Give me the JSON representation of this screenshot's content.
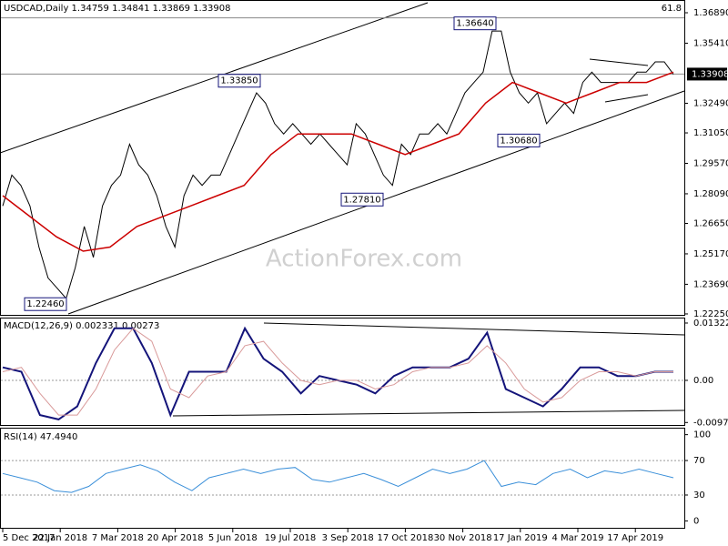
{
  "chart_data": [
    {
      "type": "line",
      "title": "USDCAD,Daily  1.34759 1.34841 1.33869 1.33908",
      "series": [
        {
          "name": "USDCAD",
          "color": "#000000",
          "values": [
            1.275,
            1.29,
            1.285,
            1.275,
            1.255,
            1.24,
            1.235,
            1.23,
            1.245,
            1.265,
            1.25,
            1.275,
            1.285,
            1.29,
            1.305,
            1.295,
            1.29,
            1.28,
            1.265,
            1.255,
            1.28,
            1.29,
            1.285,
            1.29,
            1.29,
            1.3,
            1.31,
            1.32,
            1.33,
            1.325,
            1.315,
            1.31,
            1.315,
            1.31,
            1.305,
            1.31,
            1.305,
            1.3,
            1.295,
            1.315,
            1.31,
            1.3,
            1.29,
            1.285,
            1.305,
            1.3,
            1.31,
            1.31,
            1.315,
            1.31,
            1.32,
            1.33,
            1.335,
            1.34,
            1.36,
            1.36,
            1.34,
            1.33,
            1.325,
            1.33,
            1.315,
            1.32,
            1.325,
            1.32,
            1.335,
            1.34,
            1.335,
            1.335,
            1.335,
            1.335,
            1.34,
            1.34,
            1.345,
            1.345,
            1.339
          ]
        },
        {
          "name": "MA",
          "color": "#cc0000",
          "values": [
            1.28,
            1.27,
            1.26,
            1.253,
            1.255,
            1.265,
            1.27,
            1.275,
            1.28,
            1.285,
            1.3,
            1.31,
            1.31,
            1.31,
            1.305,
            1.3,
            1.305,
            1.31,
            1.325,
            1.335,
            1.33,
            1.325,
            1.33,
            1.335,
            1.335,
            1.34
          ]
        }
      ],
      "ylim": [
        1.2216,
        1.3751
      ],
      "yticks": [
        {
          "value": 1.3689,
          "label": "1.36890"
        },
        {
          "value": 1.3541,
          "label": "1.35410"
        },
        {
          "value": 1.3249,
          "label": "1.32490"
        },
        {
          "value": 1.3105,
          "label": "1.31050"
        },
        {
          "value": 1.2957,
          "label": "1.29570"
        },
        {
          "value": 1.2809,
          "label": "1.28090"
        },
        {
          "value": 1.2665,
          "label": "1.26650"
        },
        {
          "value": 1.2517,
          "label": "1.25170"
        },
        {
          "value": 1.2369,
          "label": "1.23690"
        },
        {
          "value": 1.2225,
          "label": "1.22250"
        }
      ],
      "last": {
        "value": 1.33908,
        "label": "1.33908"
      },
      "annotations": [
        {
          "value": 1.3664,
          "label": "1.36640"
        },
        {
          "value": 1.3385,
          "label": "1.33850"
        },
        {
          "value": 1.3068,
          "label": "1.30680"
        },
        {
          "value": 1.2781,
          "label": "1.27810"
        },
        {
          "value": 1.2246,
          "label": "1.22460"
        }
      ],
      "fib_label": "61.8",
      "watermark": "ActionForex.com"
    },
    {
      "type": "line",
      "title": "MACD(12,26,9) 0.002331 0.00273",
      "series": [
        {
          "name": "MACD",
          "color": "#14147a",
          "values": [
            0.003,
            0.002,
            -0.008,
            -0.009,
            -0.006,
            0.004,
            0.012,
            0.012,
            0.004,
            -0.008,
            0.002,
            0.002,
            0.002,
            0.012,
            0.005,
            0.002,
            -0.003,
            0.001,
            0.0,
            -0.001,
            -0.003,
            0.001,
            0.003,
            0.003,
            0.003,
            0.005,
            0.011,
            -0.002,
            -0.004,
            -0.006,
            -0.002,
            0.003,
            0.003,
            0.001,
            0.001,
            0.002,
            0.002
          ]
        },
        {
          "name": "Signal",
          "color": "#d99a9a",
          "values": [
            0.002,
            0.003,
            -0.003,
            -0.008,
            -0.008,
            -0.002,
            0.007,
            0.012,
            0.009,
            -0.002,
            -0.004,
            0.001,
            0.002,
            0.008,
            0.009,
            0.004,
            0.0,
            -0.001,
            0.0,
            0.0,
            -0.002,
            -0.001,
            0.002,
            0.003,
            0.003,
            0.004,
            0.008,
            0.004,
            -0.002,
            -0.005,
            -0.004,
            0.0,
            0.002,
            0.002,
            0.001,
            0.002,
            0.002
          ]
        }
      ],
      "ylim": [
        -0.01029,
        0.01448
      ],
      "yticks": [
        0.013224,
        {
          "value": 0,
          "label": "0.00"
        },
        -0.009721
      ],
      "grid": [
        0
      ]
    },
    {
      "type": "line",
      "title": "RSI(14) 47.4940",
      "series": [
        {
          "name": "RSI",
          "color": "#3a8fd9",
          "values": [
            55,
            50,
            45,
            35,
            33,
            40,
            55,
            60,
            65,
            58,
            45,
            35,
            50,
            55,
            60,
            55,
            60,
            62,
            48,
            45,
            50,
            55,
            48,
            40,
            50,
            60,
            55,
            60,
            70,
            40,
            45,
            42,
            55,
            60,
            50,
            58,
            55,
            60,
            55,
            50
          ]
        }
      ],
      "ylim": [
        -8,
        107
      ],
      "yticks": [
        100,
        70,
        30,
        0
      ],
      "grid": [
        70,
        30
      ],
      "x_labels": [
        "5 Dec 2017",
        "22 Jan 2018",
        "7 Mar 2018",
        "20 Apr 2018",
        "5 Jun 2018",
        "19 Jul 2018",
        "3 Sep 2018",
        "17 Oct 2018",
        "30 Nov 2018",
        "17 Jan 2019",
        "4 Mar 2019",
        "17 Apr 2019"
      ]
    }
  ]
}
